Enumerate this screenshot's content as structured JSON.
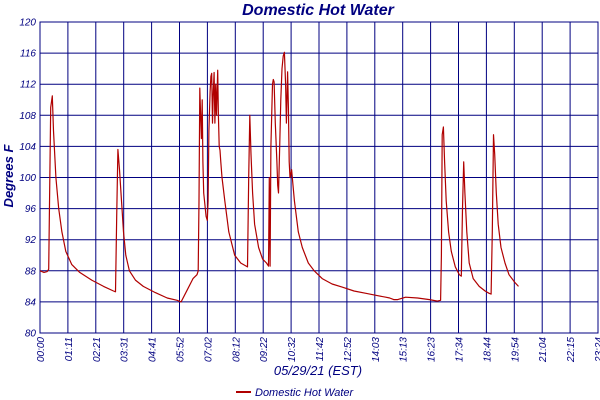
{
  "chart_data": {
    "type": "line",
    "title": "Domestic Hot Water",
    "xlabel": "05/29/21 (EST)",
    "ylabel": "Degrees F",
    "ylim": [
      80,
      120
    ],
    "y_ticks": [
      "80",
      "84",
      "88",
      "92",
      "96",
      "100",
      "104",
      "108",
      "112",
      "116",
      "120"
    ],
    "x_ticks": [
      "00:00",
      "01:11",
      "02:21",
      "03:31",
      "04:41",
      "05:52",
      "07:02",
      "08:12",
      "09:22",
      "10:32",
      "11:42",
      "12:52",
      "14:03",
      "15:13",
      "16:23",
      "17:34",
      "18:44",
      "19:54",
      "21:04",
      "22:15",
      "23:24"
    ],
    "xlim_minutes": [
      0,
      1404
    ],
    "grid": true,
    "legend": "bottom-center",
    "colors": {
      "series": "#b00000",
      "grid": "#000080",
      "axis_text": "#000080"
    },
    "series": [
      {
        "name": "Domestic Hot Water",
        "points": [
          [
            0,
            88.0
          ],
          [
            10,
            87.8
          ],
          [
            18,
            87.9
          ],
          [
            22,
            88.2
          ],
          [
            27,
            109
          ],
          [
            31,
            110.5
          ],
          [
            34,
            106
          ],
          [
            40,
            100
          ],
          [
            47,
            96
          ],
          [
            55,
            93
          ],
          [
            65,
            90.5
          ],
          [
            80,
            88.8
          ],
          [
            100,
            87.8
          ],
          [
            130,
            86.8
          ],
          [
            160,
            86.0
          ],
          [
            185,
            85.4
          ],
          [
            190,
            85.3
          ],
          [
            193,
            95
          ],
          [
            196,
            103.6
          ],
          [
            200,
            101
          ],
          [
            205,
            97
          ],
          [
            210,
            93
          ],
          [
            216,
            90
          ],
          [
            225,
            88
          ],
          [
            240,
            86.8
          ],
          [
            260,
            86.0
          ],
          [
            290,
            85.2
          ],
          [
            320,
            84.5
          ],
          [
            345,
            84.2
          ],
          [
            355,
            84.0
          ],
          [
            370,
            85.5
          ],
          [
            385,
            87.0
          ],
          [
            395,
            87.5
          ],
          [
            398,
            88
          ],
          [
            400,
            97
          ],
          [
            402,
            111.5
          ],
          [
            404,
            108
          ],
          [
            406,
            105
          ],
          [
            408,
            110
          ],
          [
            410,
            102
          ],
          [
            412,
            98
          ],
          [
            418,
            95
          ],
          [
            421,
            94.5
          ],
          [
            423,
            97
          ],
          [
            425,
            106
          ],
          [
            428,
            111
          ],
          [
            430,
            113
          ],
          [
            432,
            113.4
          ],
          [
            434,
            107
          ],
          [
            436,
            111
          ],
          [
            438,
            113.5
          ],
          [
            440,
            107
          ],
          [
            442,
            112
          ],
          [
            444,
            108
          ],
          [
            447,
            113.8
          ],
          [
            449,
            108
          ],
          [
            451,
            104
          ],
          [
            453,
            103.5
          ],
          [
            455,
            102
          ],
          [
            458,
            100
          ],
          [
            465,
            97
          ],
          [
            475,
            93
          ],
          [
            490,
            90
          ],
          [
            505,
            89
          ],
          [
            522,
            88.5
          ],
          [
            525,
            100
          ],
          [
            528,
            108
          ],
          [
            531,
            103
          ],
          [
            535,
            98
          ],
          [
            540,
            94
          ],
          [
            550,
            91
          ],
          [
            560,
            89.5
          ],
          [
            570,
            89
          ],
          [
            575,
            88.6
          ],
          [
            577,
            100
          ],
          [
            579,
            88.6
          ],
          [
            581,
            104
          ],
          [
            583,
            108
          ],
          [
            585,
            112
          ],
          [
            587,
            112.6
          ],
          [
            589,
            112.3
          ],
          [
            592,
            107
          ],
          [
            596,
            102
          ],
          [
            598,
            99
          ],
          [
            600,
            98
          ],
          [
            603,
            104
          ],
          [
            606,
            110
          ],
          [
            609,
            114
          ],
          [
            612,
            115.6
          ],
          [
            615,
            116.1
          ],
          [
            618,
            112
          ],
          [
            620,
            107
          ],
          [
            623,
            113.6
          ],
          [
            625,
            109
          ],
          [
            627,
            102
          ],
          [
            629,
            100
          ],
          [
            633,
            101
          ],
          [
            640,
            97
          ],
          [
            650,
            93
          ],
          [
            660,
            91
          ],
          [
            675,
            89
          ],
          [
            690,
            88
          ],
          [
            710,
            87
          ],
          [
            735,
            86.3
          ],
          [
            760,
            85.9
          ],
          [
            790,
            85.4
          ],
          [
            820,
            85.1
          ],
          [
            850,
            84.8
          ],
          [
            870,
            84.6
          ],
          [
            880,
            84.5
          ],
          [
            890,
            84.3
          ],
          [
            900,
            84.3
          ],
          [
            920,
            84.6
          ],
          [
            950,
            84.5
          ],
          [
            980,
            84.3
          ],
          [
            1000,
            84.1
          ],
          [
            1008,
            84.2
          ],
          [
            1010,
            90
          ],
          [
            1012,
            105.5
          ],
          [
            1015,
            106.5
          ],
          [
            1018,
            102
          ],
          [
            1022,
            97
          ],
          [
            1028,
            93
          ],
          [
            1035,
            90.5
          ],
          [
            1045,
            88.5
          ],
          [
            1055,
            87.5
          ],
          [
            1060,
            87.3
          ],
          [
            1063,
            96
          ],
          [
            1066,
            102
          ],
          [
            1069,
            98
          ],
          [
            1074,
            93
          ],
          [
            1080,
            89
          ],
          [
            1090,
            87
          ],
          [
            1105,
            86
          ],
          [
            1120,
            85.4
          ],
          [
            1130,
            85.1
          ],
          [
            1135,
            85
          ],
          [
            1138,
            93
          ],
          [
            1141,
            105.5
          ],
          [
            1144,
            103
          ],
          [
            1148,
            98
          ],
          [
            1153,
            94
          ],
          [
            1160,
            91
          ],
          [
            1170,
            89
          ],
          [
            1180,
            87.5
          ],
          [
            1195,
            86.5
          ],
          [
            1204,
            86.0
          ]
        ]
      }
    ]
  }
}
